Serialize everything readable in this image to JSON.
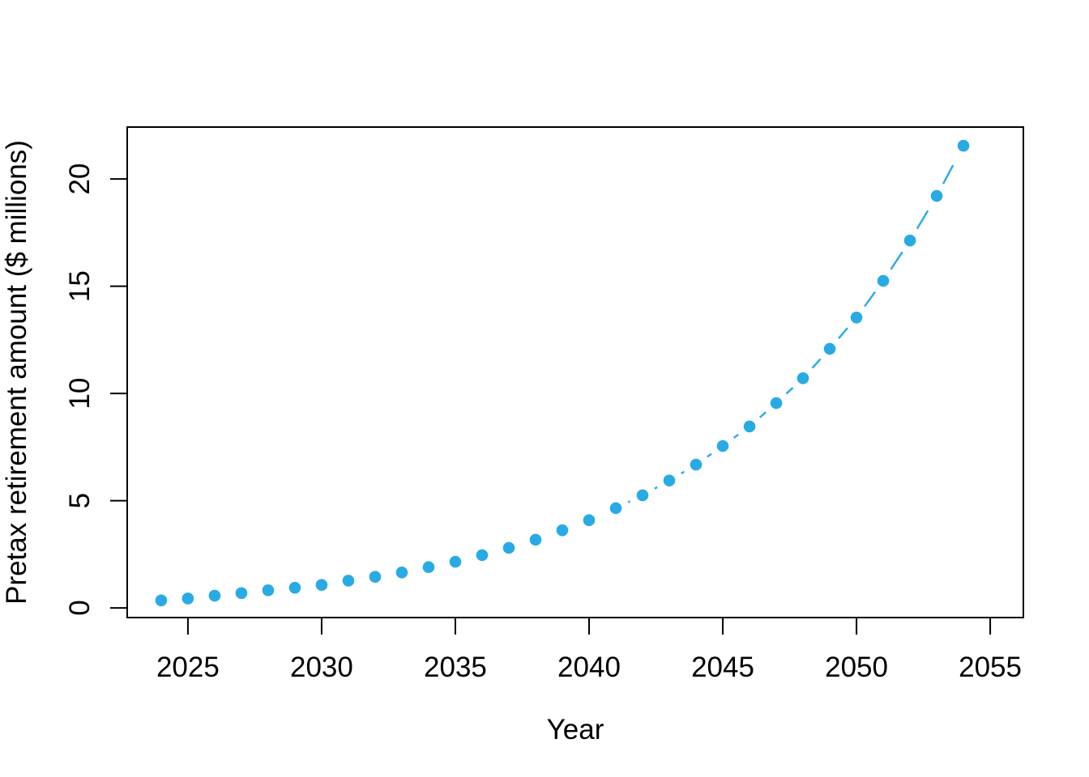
{
  "chart_data": {
    "type": "scatter",
    "title": "",
    "xlabel": "Year",
    "ylabel": "Pretax retirement amount ($ millions)",
    "x_ticks": [
      2025,
      2030,
      2035,
      2040,
      2045,
      2050,
      2055
    ],
    "y_ticks": [
      0,
      5,
      10,
      15,
      20
    ],
    "xlim": [
      2022.73,
      2056.24
    ],
    "ylim": [
      -0.45,
      22.42
    ],
    "grid": false,
    "legend": "none",
    "marker": "filled-circle",
    "line_style": "dashed",
    "point_color": "#28ABE5",
    "axis_color": "#000000",
    "series": [
      {
        "name": "pretax-retirement-amount",
        "x": [
          2024,
          2025,
          2026,
          2027,
          2028,
          2029,
          2030,
          2031,
          2032,
          2033,
          2034,
          2035,
          2036,
          2037,
          2038,
          2039,
          2040,
          2041,
          2042,
          2043,
          2044,
          2045,
          2046,
          2047,
          2048,
          2049,
          2050,
          2051,
          2052,
          2053,
          2054
        ],
        "y": [
          0.35,
          0.44,
          0.57,
          0.69,
          0.82,
          0.94,
          1.07,
          1.27,
          1.45,
          1.65,
          1.9,
          2.15,
          2.46,
          2.8,
          3.18,
          3.62,
          4.09,
          4.65,
          5.25,
          5.94,
          6.68,
          7.55,
          8.46,
          9.55,
          10.71,
          12.08,
          13.54,
          15.25,
          17.13,
          19.21,
          21.55
        ]
      }
    ]
  }
}
